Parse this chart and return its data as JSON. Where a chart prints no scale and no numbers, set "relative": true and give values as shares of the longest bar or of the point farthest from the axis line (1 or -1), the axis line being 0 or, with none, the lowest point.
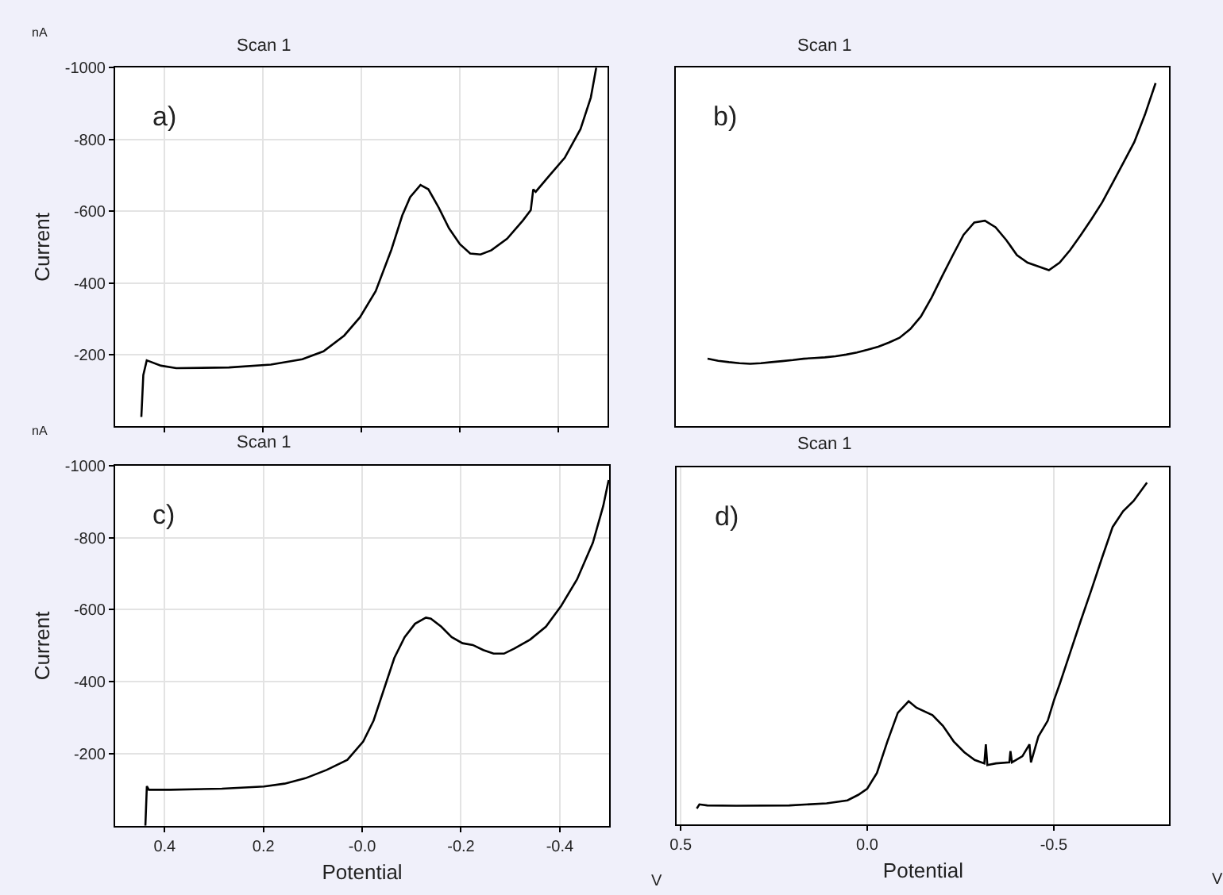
{
  "chart_data": [
    {
      "type": "line",
      "title": "Scan 1",
      "ylabel": "Current",
      "annotations": [
        "a)",
        "nA"
      ],
      "xlim": [
        0.5,
        -0.5
      ],
      "xticks": [
        {
          "value": 0.4,
          "label": null
        },
        {
          "value": 0.2,
          "label": null
        },
        {
          "value": 0,
          "label": null
        },
        {
          "value": -0.2,
          "label": null
        },
        {
          "value": -0.4,
          "label": null
        }
      ],
      "ylim": [
        0,
        -1000
      ],
      "yticks": [
        -200,
        -400,
        -600,
        -800,
        -1000
      ],
      "grid": true,
      "tick_labels": "y",
      "series": [
        {
          "color": "#000000",
          "x": [
            0.447,
            0.443,
            0.436,
            0.407,
            0.376,
            0.269,
            0.184,
            0.12,
            0.077,
            0.035,
            0.003,
            -0.029,
            -0.061,
            -0.083,
            -0.099,
            -0.12,
            -0.136,
            -0.157,
            -0.178,
            -0.2,
            -0.221,
            -0.242,
            -0.264,
            -0.296,
            -0.328,
            -0.344,
            -0.349,
            -0.354,
            -0.381,
            -0.413,
            -0.445,
            -0.466,
            -0.477
          ],
          "values": [
            -26,
            -143,
            -184,
            -169,
            -162,
            -164,
            -172,
            -187,
            -209,
            -253,
            -304,
            -377,
            -493,
            -588,
            -639,
            -673,
            -661,
            -610,
            -552,
            -508,
            -482,
            -479,
            -491,
            -523,
            -574,
            -603,
            -661,
            -654,
            -698,
            -749,
            -829,
            -917,
            -1000
          ]
        }
      ]
    },
    {
      "type": "line",
      "title": "Scan 1",
      "annotations": [
        "b)"
      ],
      "categories": [
        null,
        null,
        null,
        null,
        null,
        null,
        null,
        null,
        null,
        null,
        null,
        null,
        null,
        null,
        null,
        null,
        null,
        null,
        null,
        null,
        null,
        null,
        null,
        null,
        null,
        null,
        null,
        null,
        null,
        null,
        null,
        null,
        null,
        null,
        null,
        null,
        null,
        null,
        null,
        null,
        null,
        null,
        null
      ],
      "relative": true,
      "tick_labels": false,
      "series": [
        {
          "color": "#000000",
          "values": [
            0.197,
            0.191,
            0.187,
            0.184,
            0.182,
            0.184,
            0.187,
            0.19,
            0.193,
            0.197,
            0.199,
            0.201,
            0.204,
            0.209,
            0.215,
            0.223,
            0.232,
            0.244,
            0.258,
            0.283,
            0.32,
            0.375,
            0.438,
            0.499,
            0.558,
            0.594,
            0.599,
            0.58,
            0.543,
            0.499,
            0.477,
            0.466,
            0.455,
            0.477,
            0.514,
            0.558,
            0.604,
            0.653,
            0.711,
            0.769,
            0.828,
            0.908,
            1
          ]
        }
      ]
    },
    {
      "type": "line",
      "title": "Scan 1",
      "ylabel": "Current",
      "xlabel": "Potential",
      "annotations": [
        "c)",
        "nA",
        "V"
      ],
      "xlim": [
        0.5,
        -0.5
      ],
      "xticks": [
        0.4,
        0.2,
        {
          "value": 0,
          "label": "-0.0"
        },
        -0.2,
        -0.4
      ],
      "ylim": [
        0,
        -1000
      ],
      "yticks": [
        -200,
        -400,
        -600,
        -800,
        -1000
      ],
      "grid": true,
      "series": [
        {
          "color": "#000000",
          "x": [
            0.439,
            0.436,
            0.432,
            0.389,
            0.284,
            0.199,
            0.157,
            0.115,
            0.072,
            0.03,
            -0.002,
            -0.023,
            -0.044,
            -0.065,
            -0.086,
            -0.107,
            -0.129,
            -0.139,
            -0.16,
            -0.181,
            -0.203,
            -0.224,
            -0.245,
            -0.266,
            -0.287,
            -0.308,
            -0.34,
            -0.372,
            -0.403,
            -0.435,
            -0.467,
            -0.488,
            -0.499
          ],
          "values": [
            0,
            -110,
            -100,
            -100,
            -103,
            -109,
            -117,
            -132,
            -155,
            -183,
            -234,
            -292,
            -379,
            -466,
            -524,
            -561,
            -578,
            -575,
            -553,
            -524,
            -507,
            -502,
            -488,
            -478,
            -478,
            -492,
            -517,
            -553,
            -611,
            -684,
            -786,
            -888,
            -960
          ]
        }
      ]
    },
    {
      "type": "line",
      "title": "Scan 1",
      "xlabel": "Potential",
      "annotations": [
        "d)",
        "V"
      ],
      "xlim": [
        0.51,
        -0.81
      ],
      "xticks": [
        0.5,
        {
          "value": 0,
          "label": "0.0"
        },
        -0.5
      ],
      "relative": true,
      "grid": true,
      "tick_labels": "x",
      "series": [
        {
          "color": "#000000",
          "x": [
            0.457,
            0.45,
            0.429,
            0.351,
            0.209,
            0.109,
            0.053,
            0.024,
            0,
            -0.026,
            -0.054,
            -0.082,
            -0.111,
            -0.132,
            -0.175,
            -0.203,
            -0.232,
            -0.26,
            -0.288,
            -0.314,
            -0.318,
            -0.322,
            -0.345,
            -0.381,
            -0.384,
            -0.388,
            -0.416,
            -0.435,
            -0.439,
            -0.459,
            -0.484,
            -0.501,
            -0.516,
            -0.544,
            -0.572,
            -0.601,
            -0.629,
            -0.658,
            -0.686,
            -0.714,
            -0.75
          ],
          "values": [
            0.046,
            0.058,
            0.055,
            0.054,
            0.055,
            0.061,
            0.07,
            0.086,
            0.104,
            0.15,
            0.242,
            0.326,
            0.36,
            0.341,
            0.319,
            0.288,
            0.242,
            0.211,
            0.188,
            0.178,
            0.234,
            0.173,
            0.178,
            0.181,
            0.214,
            0.181,
            0.199,
            0.234,
            0.181,
            0.257,
            0.303,
            0.364,
            0.41,
            0.502,
            0.594,
            0.686,
            0.778,
            0.87,
            0.916,
            0.946,
            1
          ]
        }
      ]
    }
  ]
}
